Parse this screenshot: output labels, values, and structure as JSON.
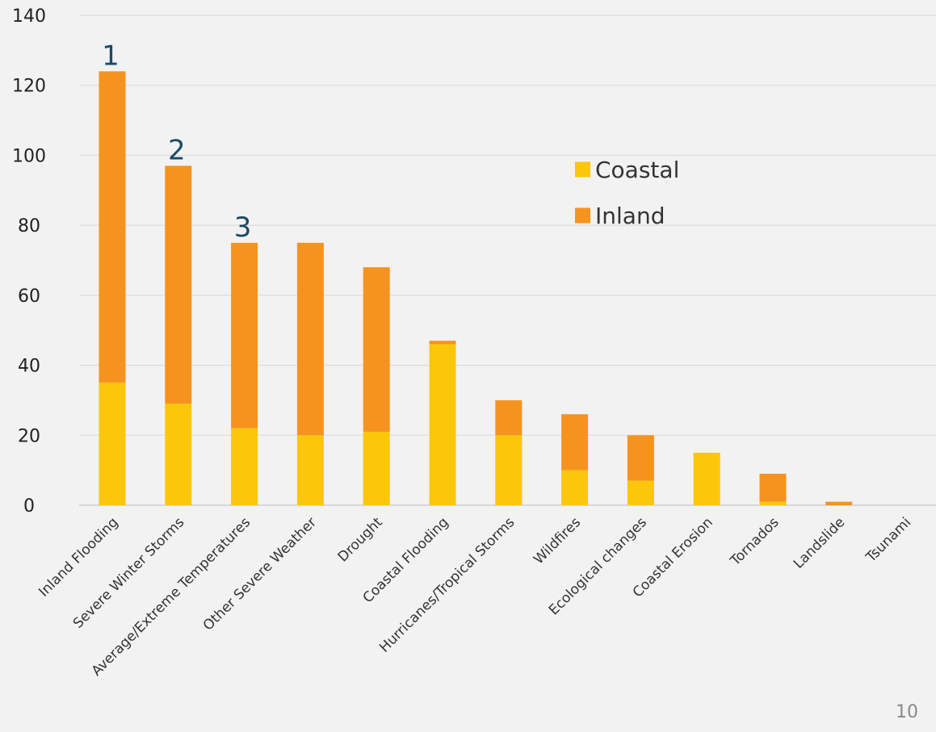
{
  "page_number": "10",
  "colors": {
    "coastal": "#fcc60a",
    "inland": "#f6931f",
    "grid": "#d9d9d9",
    "axis": "#bfbfbf",
    "rank_text": "#1a4a63"
  },
  "chart_data": {
    "type": "bar",
    "stacked": true,
    "categories": [
      "Inland Flooding",
      "Severe Winter Storms",
      "Average/Extreme Temperatures",
      "Other Severe Weather",
      "Drought",
      "Coastal Flooding",
      "Hurricanes/Tropical Storms",
      "Wildfires",
      "Ecological changes",
      "Coastal Erosion",
      "Tornados",
      "Landslide",
      "Tsunami"
    ],
    "series": [
      {
        "name": "Coastal",
        "color": "#fcc60a",
        "values": [
          35,
          29,
          22,
          20,
          21,
          46,
          20,
          10,
          7,
          15,
          1,
          0,
          0
        ]
      },
      {
        "name": "Inland",
        "color": "#f6931f",
        "values": [
          89,
          68,
          53,
          55,
          47,
          1,
          10,
          16,
          13,
          0,
          8,
          1,
          0
        ]
      }
    ],
    "rank_labels": [
      {
        "category": "Inland Flooding",
        "label": "1"
      },
      {
        "category": "Severe Winter Storms",
        "label": "2"
      },
      {
        "category": "Average/Extreme Temperatures",
        "label": "3"
      }
    ],
    "ylim": [
      0,
      140
    ],
    "yticks": [
      0,
      20,
      40,
      60,
      80,
      100,
      120,
      140
    ],
    "grid": true,
    "legend_position": "right",
    "title": "",
    "xlabel": "",
    "ylabel": ""
  }
}
